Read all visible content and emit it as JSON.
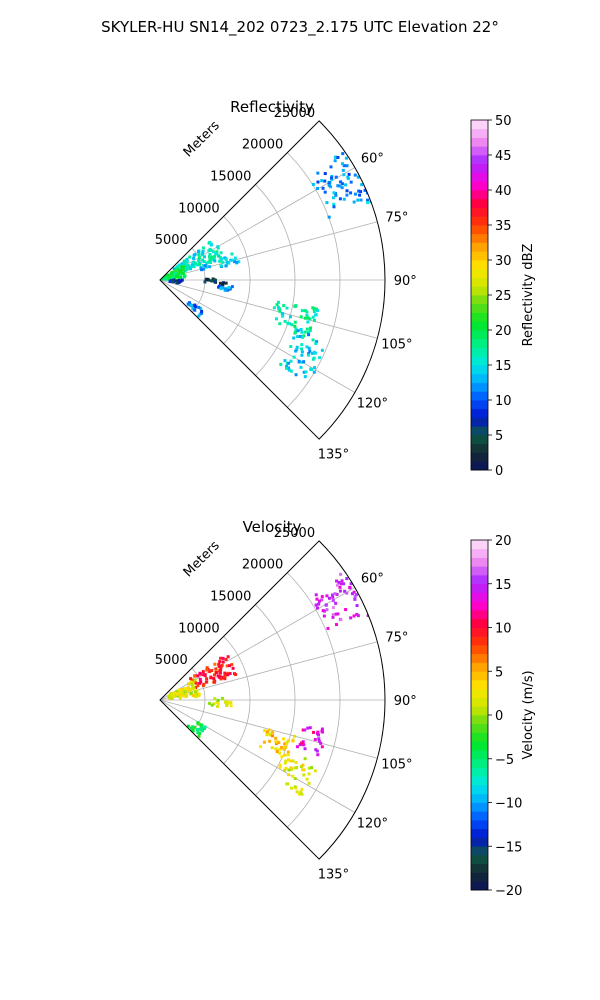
{
  "figure": {
    "title": "SKYLER-HU  SN14_202  0723_2.175 UTC Elevation 22°"
  },
  "chart_data": [
    {
      "type": "heatmap",
      "panel": "reflectivity",
      "title": "Reflectivity",
      "r_axis_label": "Meters",
      "r_ticks": [
        5000,
        10000,
        15000,
        20000,
        25000
      ],
      "r_tick_labels": [
        "5000",
        "10000",
        "15000",
        "20000",
        "25000"
      ],
      "r_max": 25000,
      "theta_range_deg": [
        45,
        135
      ],
      "theta_ticks": [
        60,
        75,
        90,
        105,
        120,
        135
      ],
      "theta_tick_labels": [
        "60°",
        "75°",
        "90°",
        "105°",
        "120°",
        "135°"
      ],
      "colorbar": {
        "label": "Reflectivity dBZ",
        "min": 0,
        "max": 50,
        "ticks": [
          0,
          5,
          10,
          15,
          20,
          25,
          30,
          35,
          40,
          45,
          50
        ],
        "tick_labels": [
          "0",
          "5",
          "10",
          "15",
          "20",
          "25",
          "30",
          "35",
          "40",
          "45",
          "50"
        ]
      },
      "clusters": [
        {
          "az": [
            52,
            70
          ],
          "r": [
            1500,
            7500
          ],
          "value": 16
        },
        {
          "az": [
            70,
            78
          ],
          "r": [
            4500,
            9000
          ],
          "value": 14
        },
        {
          "az": [
            58,
            85
          ],
          "r": [
            300,
            3000
          ],
          "value": 20
        },
        {
          "az": [
            88,
            95
          ],
          "r": [
            5000,
            7500
          ],
          "value": 4
        },
        {
          "az": [
            95,
            100
          ],
          "r": [
            6500,
            8500
          ],
          "value": 12
        },
        {
          "az": [
            100,
            112
          ],
          "r": [
            13000,
            18000
          ],
          "value": 17
        },
        {
          "az": [
            110,
            125
          ],
          "r": [
            16000,
            20000
          ],
          "value": 14
        },
        {
          "az": [
            125,
            133
          ],
          "r": [
            4000,
            6000
          ],
          "value": 11
        },
        {
          "az": [
            55,
            70
          ],
          "r": [
            20000,
            25000
          ],
          "value": 12
        },
        {
          "az": [
            90,
            100
          ],
          "r": [
            1000,
            2500
          ],
          "value": 6
        }
      ]
    },
    {
      "type": "heatmap",
      "panel": "velocity",
      "title": "Velocity",
      "r_axis_label": "Meters",
      "r_ticks": [
        5000,
        10000,
        15000,
        20000,
        25000
      ],
      "r_tick_labels": [
        "5000",
        "10000",
        "15000",
        "20000",
        "25000"
      ],
      "r_max": 25000,
      "theta_range_deg": [
        45,
        135
      ],
      "theta_ticks": [
        60,
        75,
        90,
        105,
        120,
        135
      ],
      "theta_tick_labels": [
        "60°",
        "75°",
        "90°",
        "105°",
        "120°",
        "135°"
      ],
      "colorbar": {
        "label": "Velocity (m/s)",
        "min": -20,
        "max": 20,
        "ticks": [
          -20,
          -15,
          -10,
          -5,
          0,
          5,
          10,
          15,
          20
        ],
        "tick_labels": [
          "−20",
          "−15",
          "−10",
          "−5",
          "0",
          "5",
          "10",
          "15",
          "20"
        ]
      },
      "clusters": [
        {
          "az": [
            55,
            72
          ],
          "r": [
            4000,
            9000
          ],
          "value": 9
        },
        {
          "az": [
            60,
            85
          ],
          "r": [
            1000,
            4500
          ],
          "value": 2
        },
        {
          "az": [
            88,
            97
          ],
          "r": [
            5500,
            8000
          ],
          "value": 1
        },
        {
          "az": [
            100,
            110
          ],
          "r": [
            16000,
            19000
          ],
          "value": 13
        },
        {
          "az": [
            105,
            115
          ],
          "r": [
            12000,
            16000
          ],
          "value": 4
        },
        {
          "az": [
            112,
            124
          ],
          "r": [
            15000,
            19000
          ],
          "value": 2
        },
        {
          "az": [
            120,
            133
          ],
          "r": [
            4000,
            6000
          ],
          "value": -4
        },
        {
          "az": [
            55,
            68
          ],
          "r": [
            20000,
            25000
          ],
          "value": 15
        }
      ]
    }
  ]
}
